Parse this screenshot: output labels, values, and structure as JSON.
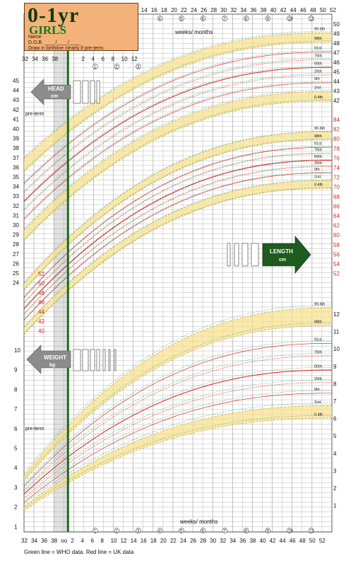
{
  "title": {
    "main": "0-1yr",
    "sub": "GIRLS",
    "name_line": "Name",
    "dob_line": "D.O.B. ____/____/____",
    "instruction": "Draw in birthline clearly if pre-term."
  },
  "labels": {
    "weeks_months_top": "weeks/ months",
    "weeks_months_bottom": "weeks/ months",
    "preterm_top": "pre-term",
    "preterm_bottom": "pre-term",
    "head": "HEAD",
    "head_unit": "cm",
    "length": "LENGTH",
    "length_unit": "cm",
    "weight": "WEIGHT",
    "weight_unit": "kg",
    "birth_marker": "oo",
    "footer": "Green line = WHO data. Red line = UK data"
  },
  "colors": {
    "uk_line": "#e0302a",
    "who_line": "#18a86e",
    "band": "#f7e08a",
    "band_dash": "#d8a020",
    "grid": "#9a9a9a",
    "birthline": "#1a6a1a",
    "preterm_shade": "#c9c9c9",
    "arrow_fill": "#8c8c8c",
    "length_arrow_fill": "#1f5a1f",
    "red_axis": "#d8241e"
  },
  "chart_data": {
    "type": "line",
    "x_axis_top": {
      "label": "weeks/ months",
      "preterm_ticks": [
        "32",
        "34",
        "36",
        "38"
      ],
      "week_ticks": [
        "2",
        "4",
        "6",
        "8",
        "10",
        "12",
        "14",
        "16",
        "18",
        "20",
        "22",
        "24",
        "26",
        "28",
        "30",
        "32",
        "34",
        "36",
        "38",
        "40",
        "42",
        "44",
        "46",
        "48",
        "50",
        "52"
      ],
      "month_markers": [
        "1",
        "2",
        "3",
        "4",
        "5",
        "6",
        "7",
        "8",
        "9",
        "10",
        "11"
      ]
    },
    "x_axis_bottom": {
      "label": "weeks/ months",
      "ticks": [
        "32",
        "34",
        "36",
        "38",
        "oo",
        "2",
        "4",
        "6",
        "8",
        "10",
        "12",
        "14",
        "16",
        "18",
        "20",
        "22",
        "24",
        "26",
        "28",
        "30",
        "32",
        "34",
        "36",
        "38",
        "40",
        "42",
        "44",
        "46",
        "48",
        "50",
        "52"
      ],
      "month_markers": [
        "1",
        "2",
        "3",
        "4",
        "5",
        "6",
        "7",
        "8",
        "9",
        "10",
        "11"
      ]
    },
    "panels": [
      {
        "name": "HEAD",
        "unit": "cm",
        "left_ticks": [
          "45",
          "44",
          "43",
          "42",
          "41",
          "40",
          "39",
          "38",
          "37",
          "36",
          "35",
          "34",
          "33",
          "32",
          "31",
          "30",
          "29",
          "28",
          "27",
          "26",
          "25",
          "24"
        ],
        "right_ticks": [
          "50",
          "49",
          "48",
          "47",
          "46",
          "45",
          "44",
          "43",
          "42"
        ],
        "percentiles": [
          "99.6th",
          "98th",
          "91st",
          "75th",
          "50th",
          "25th",
          "9th",
          "2nd",
          "0.4th"
        ],
        "birth_week": -2,
        "birth_values": [
          38.3,
          37.0,
          35.8,
          34.9,
          34.0,
          33.1,
          32.2,
          31.1,
          30.0
        ],
        "week52_values": [
          49.4,
          48.4,
          47.4,
          46.6,
          45.8,
          45.0,
          44.2,
          43.3,
          42.3
        ],
        "ylim": [
          24,
          50
        ]
      },
      {
        "name": "LENGTH",
        "unit": "cm",
        "left_ticks": [
          "52",
          "50",
          "48",
          "46",
          "44",
          "42",
          "40"
        ],
        "right_ticks": [
          "84",
          "82",
          "80",
          "78",
          "76",
          "74",
          "72",
          "70",
          "68",
          "66",
          "64",
          "62",
          "60",
          "58",
          "56",
          "54",
          "52"
        ],
        "percentiles": [
          "99.6th",
          "98th",
          "91st",
          "75th",
          "50th",
          "25th",
          "9th",
          "2nd",
          "0.4th"
        ],
        "birth_week": -2,
        "birth_values": [
          55.0,
          53.5,
          52.0,
          50.8,
          49.6,
          48.4,
          47.2,
          45.7,
          44.2
        ],
        "week52_values": [
          81.6,
          80.0,
          78.4,
          77.1,
          75.7,
          74.4,
          73.1,
          71.5,
          69.9
        ],
        "ylim": [
          40,
          84
        ]
      },
      {
        "name": "WEIGHT",
        "unit": "kg",
        "left_ticks": [
          "10",
          "9",
          "8",
          "7",
          "6",
          "5",
          "4",
          "3",
          "2",
          "1"
        ],
        "right_ticks": [
          "12",
          "11",
          "10",
          "9",
          "8",
          "7",
          "6",
          "5",
          "4",
          "3",
          "2",
          "1"
        ],
        "percentiles": [
          "99.6th",
          "98th",
          "91st",
          "75th",
          "50th",
          "25th",
          "9th",
          "2nd",
          "0.4th"
        ],
        "birth_week": -2,
        "birth_values": [
          4.6,
          4.2,
          3.8,
          3.5,
          3.2,
          2.9,
          2.6,
          2.3,
          2.0
        ],
        "week52_values": [
          12.6,
          11.6,
          10.6,
          9.9,
          9.1,
          8.4,
          7.8,
          7.1,
          6.4
        ],
        "ylim": [
          0,
          12.8
        ]
      }
    ]
  }
}
